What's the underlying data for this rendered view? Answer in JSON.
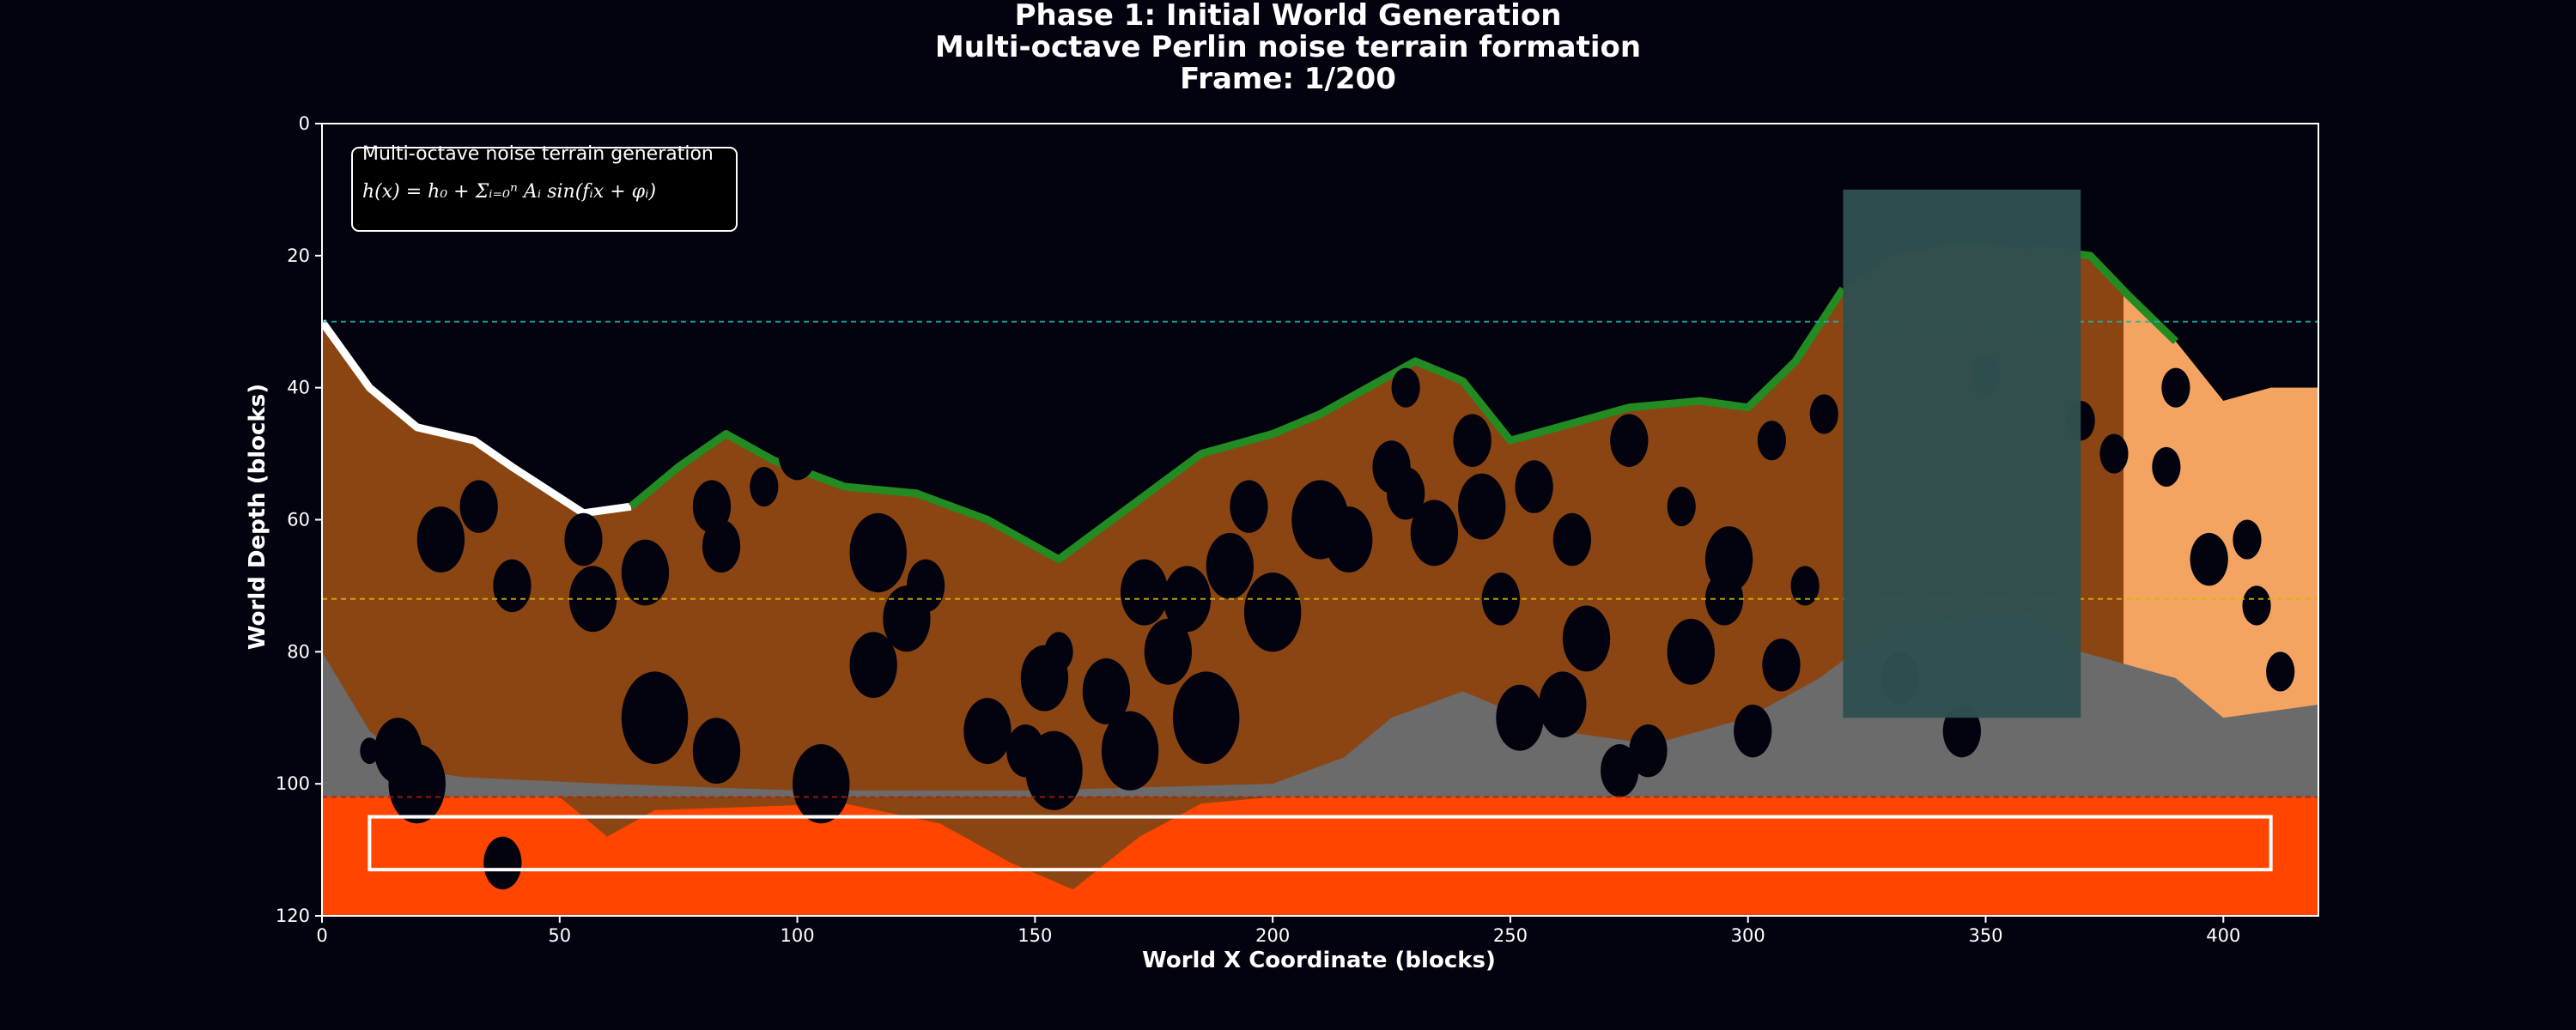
{
  "chart_data": {
    "type": "heatmap",
    "title_lines": [
      "Phase 1: Initial World Generation",
      "Multi-octave Perlin noise terrain formation",
      "Frame: 1/200"
    ],
    "xlabel": "World X Coordinate (blocks)",
    "ylabel": "World Depth (blocks)",
    "xlim": [
      0,
      420
    ],
    "ylim": [
      120,
      0
    ],
    "xticks": [
      0,
      50,
      100,
      150,
      200,
      250,
      300,
      350,
      400
    ],
    "yticks": [
      0,
      20,
      40,
      60,
      80,
      100,
      120
    ],
    "grid": false,
    "colors": {
      "background": "#03030f",
      "dirt": "#8b4513",
      "stone": "#6b6b6b",
      "grass": "#228b22",
      "snow": "#ffffff",
      "sand": "#f4a460",
      "lava": "#ff4500",
      "overlay": "#2f4f4f",
      "water_line": "#20b2aa",
      "yellow_line": "#d4b800",
      "red_line": "#aa2200"
    },
    "annotation": {
      "title": "Multi-octave noise terrain generation",
      "formula": "h(x) = h₀ + Σᵢ₌₀ⁿ Aᵢ sin(fᵢx + φᵢ)"
    },
    "reference_lines": [
      {
        "y": 30,
        "color": "water_line"
      },
      {
        "y": 72,
        "color": "yellow_line"
      },
      {
        "y": 102,
        "color": "red_line"
      }
    ],
    "overlay_region": {
      "x": [
        320,
        370
      ],
      "y": [
        10,
        90
      ]
    },
    "highlight_box": {
      "x": [
        10,
        410
      ],
      "y": [
        105,
        113
      ]
    },
    "lava_level": 102,
    "surface": [
      [
        0,
        30
      ],
      [
        10,
        40
      ],
      [
        20,
        46
      ],
      [
        32,
        48
      ],
      [
        40,
        52
      ],
      [
        55,
        59
      ],
      [
        65,
        58
      ],
      [
        75,
        52
      ],
      [
        85,
        47
      ],
      [
        95,
        51
      ],
      [
        110,
        55
      ],
      [
        125,
        56
      ],
      [
        140,
        60
      ],
      [
        155,
        66
      ],
      [
        170,
        58
      ],
      [
        185,
        50
      ],
      [
        200,
        47
      ],
      [
        210,
        44
      ],
      [
        220,
        40
      ],
      [
        230,
        36
      ],
      [
        240,
        39
      ],
      [
        250,
        48
      ],
      [
        260,
        46
      ],
      [
        275,
        43
      ],
      [
        290,
        42
      ],
      [
        300,
        43
      ],
      [
        310,
        36
      ],
      [
        320,
        25
      ],
      [
        330,
        20
      ],
      [
        345,
        18
      ],
      [
        360,
        19
      ],
      [
        372,
        20
      ],
      [
        380,
        26
      ],
      [
        390,
        33
      ],
      [
        400,
        42
      ],
      [
        410,
        40
      ],
      [
        420,
        40
      ]
    ],
    "stone_top": [
      [
        0,
        80
      ],
      [
        10,
        92
      ],
      [
        20,
        98
      ],
      [
        30,
        99
      ],
      [
        60,
        100
      ],
      [
        100,
        101
      ],
      [
        150,
        101
      ],
      [
        200,
        100
      ],
      [
        215,
        96
      ],
      [
        225,
        90
      ],
      [
        240,
        86
      ],
      [
        260,
        92
      ],
      [
        280,
        94
      ],
      [
        300,
        90
      ],
      [
        315,
        84
      ],
      [
        330,
        76
      ],
      [
        360,
        74
      ],
      [
        370,
        80
      ],
      [
        380,
        82
      ],
      [
        390,
        84
      ],
      [
        400,
        90
      ],
      [
        410,
        89
      ],
      [
        420,
        88
      ]
    ],
    "sand_region": {
      "x": [
        379,
        420
      ]
    },
    "dirt_bulge": [
      [
        50,
        102
      ],
      [
        60,
        108
      ],
      [
        70,
        104
      ],
      [
        110,
        103
      ],
      [
        130,
        106
      ],
      [
        145,
        112
      ],
      [
        158,
        116
      ],
      [
        172,
        108
      ],
      [
        185,
        103
      ],
      [
        200,
        102
      ]
    ],
    "caves": [
      [
        25,
        63,
        5
      ],
      [
        33,
        58,
        4
      ],
      [
        40,
        70,
        4
      ],
      [
        57,
        72,
        5
      ],
      [
        55,
        63,
        4
      ],
      [
        68,
        68,
        5
      ],
      [
        82,
        58,
        4
      ],
      [
        84,
        64,
        4
      ],
      [
        93,
        55,
        3
      ],
      [
        83,
        95,
        5
      ],
      [
        70,
        90,
        7
      ],
      [
        100,
        50,
        4
      ],
      [
        105,
        100,
        6
      ],
      [
        117,
        65,
        6
      ],
      [
        116,
        82,
        5
      ],
      [
        123,
        75,
        5
      ],
      [
        127,
        70,
        4
      ],
      [
        140,
        92,
        5
      ],
      [
        148,
        95,
        4
      ],
      [
        152,
        84,
        5
      ],
      [
        154,
        98,
        6
      ],
      [
        155,
        80,
        3
      ],
      [
        165,
        86,
        5
      ],
      [
        170,
        95,
        6
      ],
      [
        173,
        71,
        5
      ],
      [
        178,
        80,
        5
      ],
      [
        182,
        72,
        5
      ],
      [
        186,
        90,
        7
      ],
      [
        191,
        67,
        5
      ],
      [
        195,
        58,
        4
      ],
      [
        200,
        74,
        6
      ],
      [
        210,
        60,
        6
      ],
      [
        216,
        63,
        5
      ],
      [
        225,
        52,
        4
      ],
      [
        228,
        40,
        3
      ],
      [
        228,
        56,
        4
      ],
      [
        234,
        62,
        5
      ],
      [
        242,
        48,
        4
      ],
      [
        244,
        58,
        5
      ],
      [
        248,
        72,
        4
      ],
      [
        252,
        90,
        5
      ],
      [
        255,
        55,
        4
      ],
      [
        261,
        88,
        5
      ],
      [
        263,
        63,
        4
      ],
      [
        266,
        78,
        5
      ],
      [
        273,
        98,
        4
      ],
      [
        275,
        48,
        4
      ],
      [
        279,
        95,
        4
      ],
      [
        286,
        58,
        3
      ],
      [
        288,
        80,
        5
      ],
      [
        295,
        72,
        4
      ],
      [
        296,
        66,
        5
      ],
      [
        301,
        92,
        4
      ],
      [
        305,
        48,
        3
      ],
      [
        307,
        82,
        4
      ],
      [
        312,
        70,
        3
      ],
      [
        316,
        44,
        3
      ],
      [
        332,
        84,
        4
      ],
      [
        345,
        92,
        4
      ],
      [
        350,
        38,
        3
      ],
      [
        370,
        45,
        3
      ],
      [
        377,
        50,
        3
      ],
      [
        388,
        52,
        3
      ],
      [
        390,
        40,
        3
      ],
      [
        397,
        66,
        4
      ],
      [
        405,
        63,
        3
      ],
      [
        407,
        73,
        3
      ],
      [
        412,
        83,
        3
      ],
      [
        16,
        95,
        5
      ],
      [
        20,
        100,
        6
      ],
      [
        38,
        112,
        4
      ],
      [
        10,
        95,
        2
      ]
    ]
  }
}
